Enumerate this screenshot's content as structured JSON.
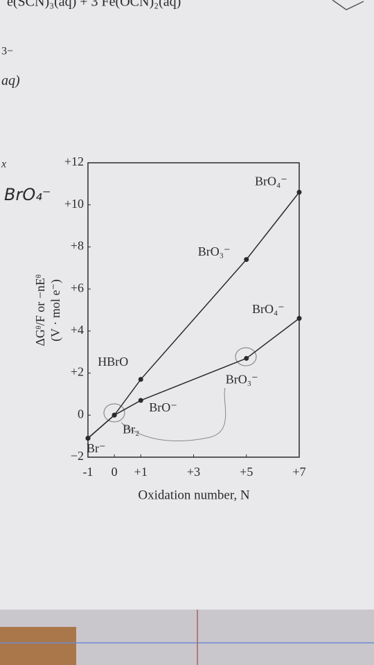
{
  "chart_data": {
    "type": "line",
    "x_label": "Oxidation number, N",
    "y_label": [
      "ΔGᶿ/F or −nEᶿ",
      "(V · mol e⁻)"
    ],
    "xlim": [
      -1,
      7
    ],
    "xticks": [
      -1,
      0,
      {
        "value": 1,
        "label": "+1"
      },
      {
        "value": 3,
        "label": "+3"
      },
      {
        "value": 5,
        "label": "+5"
      },
      {
        "value": 7,
        "label": "+7"
      }
    ],
    "ylim": [
      -2,
      12
    ],
    "yticks": [
      {
        "value": -2,
        "label": "−2"
      },
      0,
      {
        "value": 2,
        "label": "+2"
      },
      {
        "value": 4,
        "label": "+4"
      },
      {
        "value": 6,
        "label": "+6"
      },
      {
        "value": 8,
        "label": "+8"
      },
      {
        "value": 10,
        "label": "+10"
      },
      {
        "value": 12,
        "label": "+12"
      }
    ],
    "series": [
      {
        "color": "#2a2a2e",
        "x": [
          -1,
          0,
          1,
          5,
          7
        ],
        "values": [
          -1.1,
          0,
          1.7,
          7.4,
          10.6
        ],
        "labels": [
          null,
          null,
          "HBrO",
          "BrO₃⁻",
          "BrO₄⁻"
        ]
      },
      {
        "color": "#2a2a2e",
        "x": [
          -1,
          0,
          1,
          5,
          7
        ],
        "values": [
          -1.1,
          0,
          0.7,
          2.7,
          4.6
        ],
        "labels": [
          "Br⁻",
          "Br₂",
          "BrO⁻",
          "BrO₃⁻",
          "BrO₄⁻"
        ]
      }
    ]
  },
  "margin_text": [
    "e(SCN)₃(aq) + 3 Fe(OCN)₂(aq)",
    "3−",
    "aq)",
    "x",
    "BrO₄⁻"
  ]
}
